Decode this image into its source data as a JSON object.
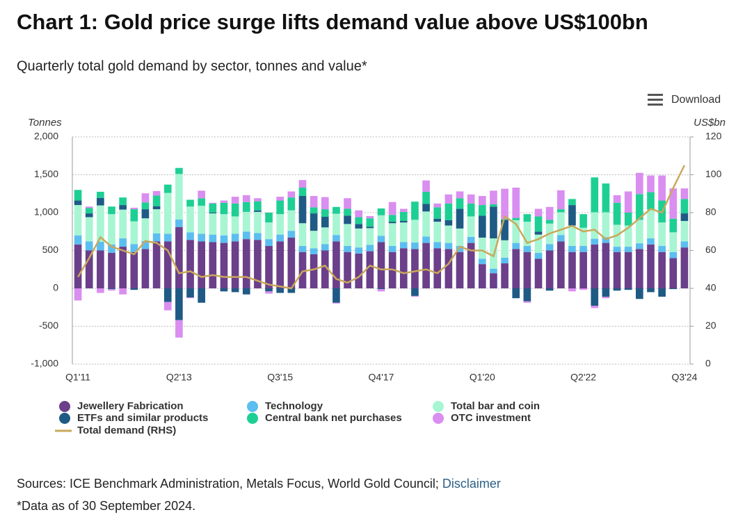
{
  "chart_data": {
    "type": "bar",
    "stacked": true,
    "title": "Chart 1: Gold price surge lifts demand value above US$100bn",
    "subtitle": "Quarterly total gold demand by sector, tonnes and value*",
    "ylabel": "Tonnes",
    "y2label": "US$bn",
    "download": "Download",
    "sources": "Sources: ICE Benchmark Administration, Metals Focus, World Gold Council;",
    "disclaimer": "Disclaimer",
    "footnote": "*Data as of 30 September 2024.",
    "grid": true,
    "categories": [
      "Q1'11",
      null,
      null,
      null,
      null,
      null,
      null,
      null,
      null,
      "Q2'13",
      null,
      null,
      null,
      null,
      null,
      null,
      null,
      null,
      "Q3'15",
      null,
      null,
      null,
      null,
      null,
      null,
      null,
      null,
      "Q4'17",
      null,
      null,
      null,
      null,
      null,
      null,
      null,
      null,
      "Q1'20",
      null,
      null,
      null,
      null,
      null,
      null,
      null,
      null,
      "Q2'22",
      null,
      null,
      null,
      null,
      null,
      null,
      null,
      null,
      "Q3'24"
    ],
    "ylim": [
      -1000,
      2000
    ],
    "yticks": [
      {
        "value": -1000,
        "label": "-1,000"
      },
      -500,
      0,
      500,
      {
        "value": 1000,
        "label": "1,000"
      },
      {
        "value": 1500,
        "label": "1,500"
      },
      {
        "value": 2000,
        "label": "2,000"
      }
    ],
    "y2lim": [
      0,
      120
    ],
    "y2ticks": [
      0,
      20,
      40,
      60,
      80,
      100,
      120
    ],
    "series": [
      {
        "name": "Jewellery Fabrication",
        "color": "#6b3f8a",
        "values": [
          580,
          500,
          500,
          470,
          550,
          480,
          520,
          620,
          620,
          810,
          640,
          620,
          610,
          600,
          620,
          650,
          640,
          560,
          620,
          670,
          480,
          450,
          500,
          620,
          480,
          460,
          490,
          610,
          480,
          530,
          520,
          600,
          530,
          520,
          480,
          600,
          320,
          200,
          330,
          520,
          480,
          390,
          500,
          620,
          480,
          480,
          580,
          600,
          480,
          480,
          520,
          580,
          480,
          400,
          540
        ]
      },
      {
        "name": "Technology",
        "color": "#5bbef0",
        "values": [
          120,
          120,
          115,
          110,
          110,
          105,
          105,
          105,
          100,
          100,
          100,
          100,
          100,
          100,
          100,
          100,
          90,
          90,
          90,
          90,
          80,
          80,
          85,
          85,
          80,
          80,
          85,
          85,
          80,
          80,
          85,
          85,
          80,
          80,
          80,
          80,
          70,
          60,
          75,
          80,
          80,
          80,
          85,
          85,
          80,
          80,
          75,
          75,
          70,
          70,
          75,
          80,
          80,
          80,
          80
        ]
      },
      {
        "name": "Total bar and coin",
        "color": "#a8f5d3",
        "values": [
          400,
          320,
          480,
          400,
          380,
          300,
          300,
          320,
          540,
          600,
          340,
          370,
          280,
          280,
          230,
          260,
          280,
          220,
          270,
          270,
          300,
          230,
          220,
          280,
          290,
          250,
          220,
          270,
          300,
          260,
          300,
          330,
          270,
          230,
          230,
          270,
          280,
          400,
          230,
          300,
          320,
          240,
          270,
          300,
          270,
          240,
          350,
          330,
          290,
          280,
          310,
          380,
          310,
          260,
          270
        ]
      },
      {
        "name": "ETFs and similar products",
        "color": "#1f5a85",
        "values": [
          60,
          50,
          100,
          -10,
          60,
          -20,
          120,
          40,
          -180,
          -420,
          -120,
          -190,
          10,
          -40,
          -50,
          -80,
          20,
          -40,
          -60,
          -60,
          360,
          230,
          140,
          -190,
          110,
          60,
          20,
          -10,
          20,
          20,
          -100,
          100,
          40,
          70,
          260,
          0,
          290,
          420,
          270,
          -130,
          -170,
          40,
          -30,
          0,
          270,
          0,
          -230,
          -110,
          -30,
          -20,
          -140,
          -50,
          -110,
          -10,
          100
        ]
      },
      {
        "name": "Central bank net purchases",
        "color": "#1ecf94",
        "values": [
          140,
          70,
          80,
          100,
          100,
          160,
          90,
          140,
          110,
          80,
          90,
          100,
          120,
          150,
          170,
          130,
          120,
          130,
          180,
          170,
          110,
          80,
          100,
          90,
          90,
          90,
          110,
          90,
          90,
          120,
          240,
          160,
          150,
          220,
          140,
          170,
          140,
          30,
          10,
          30,
          100,
          200,
          50,
          40,
          80,
          180,
          460,
          380,
          290,
          170,
          340,
          230,
          290,
          180,
          190
        ]
      },
      {
        "name": "OTC investment",
        "color": "#d98ef0",
        "values": [
          -160,
          20,
          -60,
          -20,
          -80,
          20,
          120,
          60,
          -110,
          -230,
          -10,
          100,
          10,
          30,
          90,
          90,
          40,
          -30,
          50,
          80,
          100,
          150,
          160,
          -10,
          140,
          90,
          30,
          -30,
          170,
          40,
          -10,
          150,
          50,
          120,
          90,
          120,
          120,
          180,
          400,
          400,
          -20,
          100,
          170,
          250,
          -40,
          -20,
          -30,
          -20,
          100,
          280,
          280,
          220,
          330,
          400,
          140
        ]
      },
      {
        "name": "Total demand (RHS)",
        "type": "line",
        "axis": "y2",
        "color": "#c9a85a",
        "values": [
          46,
          56,
          67,
          62,
          60,
          58,
          65,
          64,
          60,
          48,
          49,
          46,
          47,
          46,
          46,
          46,
          44,
          42,
          41,
          40,
          49,
          50,
          52,
          45,
          43,
          46,
          52,
          50,
          50,
          48,
          49,
          50,
          48,
          53,
          62,
          60,
          60,
          57,
          78,
          74,
          64,
          66,
          69,
          71,
          73,
          70,
          71,
          66,
          68,
          72,
          77,
          82,
          80,
          93,
          105
        ]
      }
    ]
  }
}
